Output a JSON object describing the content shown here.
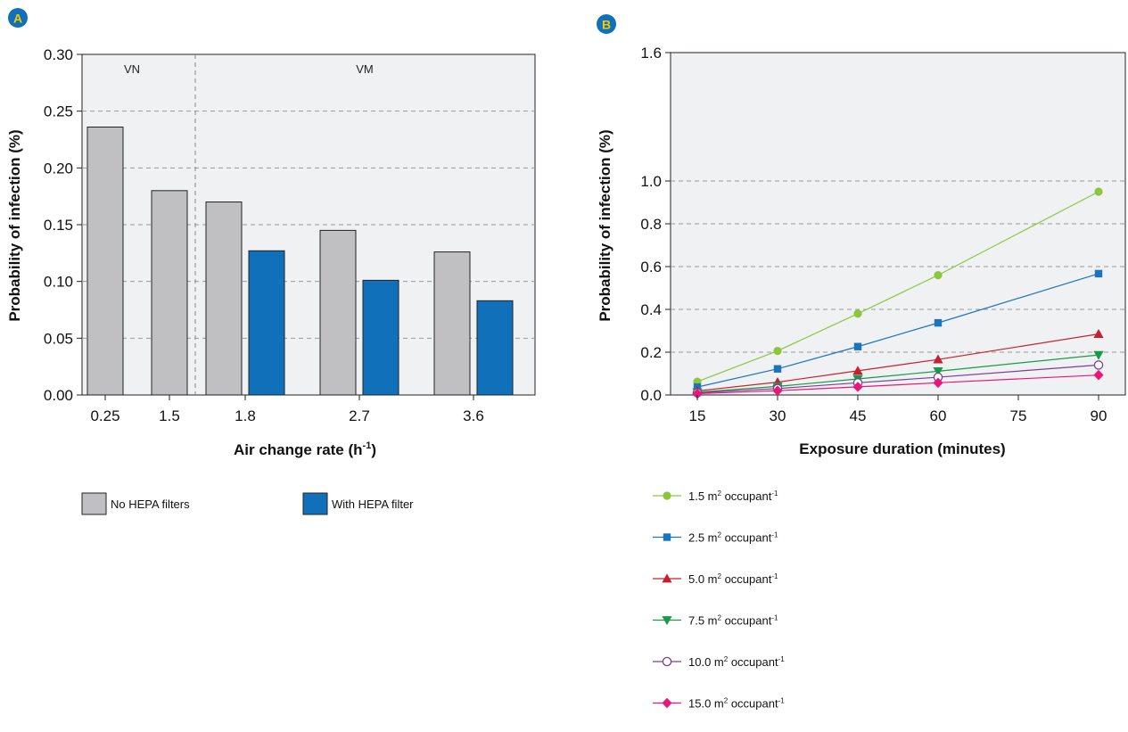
{
  "chart_data": [
    {
      "panel_label": "A",
      "type": "bar",
      "xlabel": "Air change rate (h",
      "xlabel_sup": "-1",
      "xlabel_end": ")",
      "ylabel": "Probability of infection (%)",
      "ylim": [
        0,
        0.3
      ],
      "y_ticks": [
        "0.00",
        "0.05",
        "0.10",
        "0.15",
        "0.20",
        "0.25",
        "0.30"
      ],
      "grid": "horizontal dashed",
      "regions": [
        {
          "label": "VN",
          "categories": [
            "0.25",
            "1.5"
          ]
        },
        {
          "label": "VM",
          "categories": [
            "1.8",
            "2.7",
            "3.6"
          ]
        }
      ],
      "categories": [
        "0.25",
        "1.5",
        "1.8",
        "2.7",
        "3.6"
      ],
      "series": [
        {
          "name": "No HEPA filters",
          "color": "#c0c0c2",
          "values": [
            0.236,
            0.18,
            0.17,
            0.145,
            0.126
          ]
        },
        {
          "name": "With HEPA filter",
          "color": "#1070ba",
          "values": [
            null,
            null,
            0.127,
            0.101,
            0.083
          ]
        }
      ],
      "legend_position": "bottom"
    },
    {
      "panel_label": "B",
      "type": "line",
      "xlabel": "Exposure duration (minutes)",
      "ylabel": "Probability of infection (%)",
      "xlim": [
        10,
        95
      ],
      "ylim": [
        0,
        1.6
      ],
      "x_ticks": [
        "15",
        "30",
        "45",
        "60",
        "75",
        "90"
      ],
      "y_ticks": [
        "0.0",
        "0.2",
        "0.4",
        "0.6",
        "0.8",
        "1.0",
        "1.6"
      ],
      "grid": "horizontal dashed",
      "x": [
        15,
        30,
        45,
        60,
        90
      ],
      "series": [
        {
          "name": "1.5 m",
          "unit_sup": "2",
          "unit": " occupant",
          "unit_exp": "-1",
          "color": "#8cc63f",
          "marker": "circle",
          "values": [
            0.062,
            0.206,
            0.38,
            0.56,
            0.95
          ]
        },
        {
          "name": "2.5 m",
          "unit_sup": "2",
          "unit": " occupant",
          "unit_exp": "-1",
          "color": "#1a75bc",
          "marker": "square",
          "values": [
            0.037,
            0.122,
            0.226,
            0.337,
            0.567
          ]
        },
        {
          "name": "5.0 m",
          "unit_sup": "2",
          "unit": " occupant",
          "unit_exp": "-1",
          "color": "#c4202f",
          "marker": "triangle-up",
          "values": [
            0.019,
            0.06,
            0.113,
            0.166,
            0.285
          ]
        },
        {
          "name": "7.5 m",
          "unit_sup": "2",
          "unit": " occupant",
          "unit_exp": "-1",
          "color": "#1a9a48",
          "marker": "triangle-down",
          "values": [
            0.013,
            0.04,
            0.075,
            0.111,
            0.187
          ]
        },
        {
          "name": "10.0 m",
          "unit_sup": "2",
          "unit": " occupant",
          "unit_exp": "-1",
          "color": "#7b3f98",
          "marker": "open-circle",
          "values": [
            0.01,
            0.03,
            0.057,
            0.083,
            0.14
          ]
        },
        {
          "name": "15.0 m",
          "unit_sup": "2",
          "unit": " occupant",
          "unit_exp": "-1",
          "color": "#e6197a",
          "marker": "diamond",
          "values": [
            0.006,
            0.02,
            0.038,
            0.057,
            0.093
          ]
        }
      ],
      "legend_position": "bottom"
    }
  ]
}
